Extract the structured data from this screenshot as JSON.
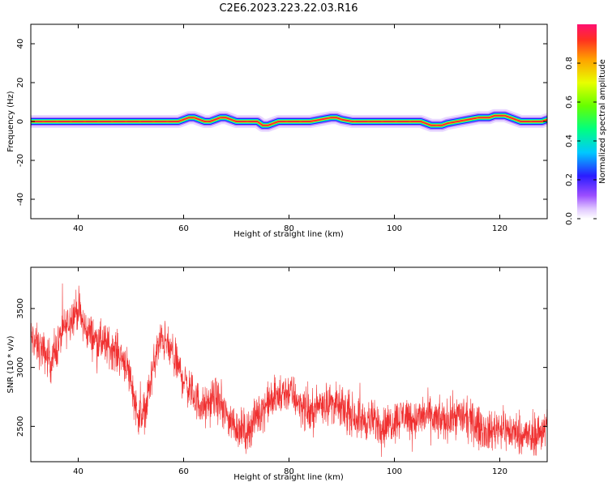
{
  "title": "C2E6.2023.223.22.03.R16",
  "chart_data": [
    {
      "type": "heatmap",
      "xlabel": "Height of straight line (km)",
      "ylabel": "Frequency (Hz)",
      "xlim": [
        31,
        129
      ],
      "ylim": [
        -50,
        50
      ],
      "xticks": [
        40,
        60,
        80,
        100,
        120
      ],
      "yticks": [
        -40,
        -20,
        0,
        20,
        40
      ],
      "colorbar": {
        "label": "Normalized spectral amplitude",
        "ticks": [
          0.0,
          0.2,
          0.4,
          0.6,
          0.8
        ],
        "range": [
          0,
          1
        ]
      },
      "ridge": {
        "x": [
          31,
          40,
          50,
          59,
          60,
          61,
          62,
          63,
          64,
          65,
          66,
          67,
          68,
          69,
          70,
          72,
          74,
          75,
          76,
          77,
          78,
          80,
          84,
          86,
          88,
          89,
          90,
          92,
          94,
          96,
          98,
          100,
          102,
          104,
          105,
          106,
          107,
          108,
          109,
          110,
          112,
          114,
          116,
          118,
          119,
          120,
          121,
          122,
          123,
          124,
          126,
          128,
          129
        ],
        "y": [
          0,
          0,
          0,
          0,
          1,
          2,
          2,
          1,
          0,
          0,
          1,
          2,
          2,
          1,
          0,
          0,
          0,
          -2,
          -2,
          -1,
          0,
          0,
          0,
          1,
          2,
          2,
          1,
          0,
          0,
          0,
          0,
          0,
          0,
          0,
          0,
          -1,
          -2,
          -2,
          -2,
          -1,
          0,
          1,
          2,
          2,
          3,
          3,
          3,
          2,
          1,
          0,
          0,
          0,
          1
        ]
      }
    },
    {
      "type": "line",
      "xlabel": "Height of straight line (km)",
      "ylabel": "SNR (10 * v/v)",
      "xlim": [
        31,
        129
      ],
      "ylim": [
        2200,
        3850
      ],
      "xticks": [
        40,
        60,
        80,
        100,
        120
      ],
      "yticks": [
        2500,
        3000,
        3500
      ],
      "color": "#f03030",
      "trend": {
        "x": [
          31,
          33,
          35,
          37,
          39,
          40,
          41,
          43,
          45,
          47,
          49,
          50,
          51,
          52,
          53,
          54,
          55,
          56,
          58,
          60,
          62,
          64,
          66,
          68,
          70,
          72,
          74,
          76,
          78,
          80,
          82,
          84,
          86,
          88,
          90,
          92,
          94,
          96,
          98,
          100,
          102,
          104,
          106,
          108,
          110,
          112,
          114,
          116,
          118,
          120,
          122,
          124,
          126,
          129
        ],
        "y": [
          3250,
          3150,
          3050,
          3300,
          3450,
          3500,
          3350,
          3250,
          3200,
          3150,
          3050,
          2900,
          2650,
          2550,
          2700,
          2950,
          3150,
          3250,
          3100,
          2900,
          2750,
          2650,
          2750,
          2600,
          2500,
          2450,
          2600,
          2700,
          2750,
          2800,
          2700,
          2600,
          2700,
          2700,
          2650,
          2600,
          2550,
          2550,
          2500,
          2550,
          2600,
          2550,
          2600,
          2550,
          2550,
          2600,
          2550,
          2500,
          2450,
          2500,
          2450,
          2450,
          2400,
          2500
        ]
      },
      "noise_amplitude": 130
    }
  ]
}
